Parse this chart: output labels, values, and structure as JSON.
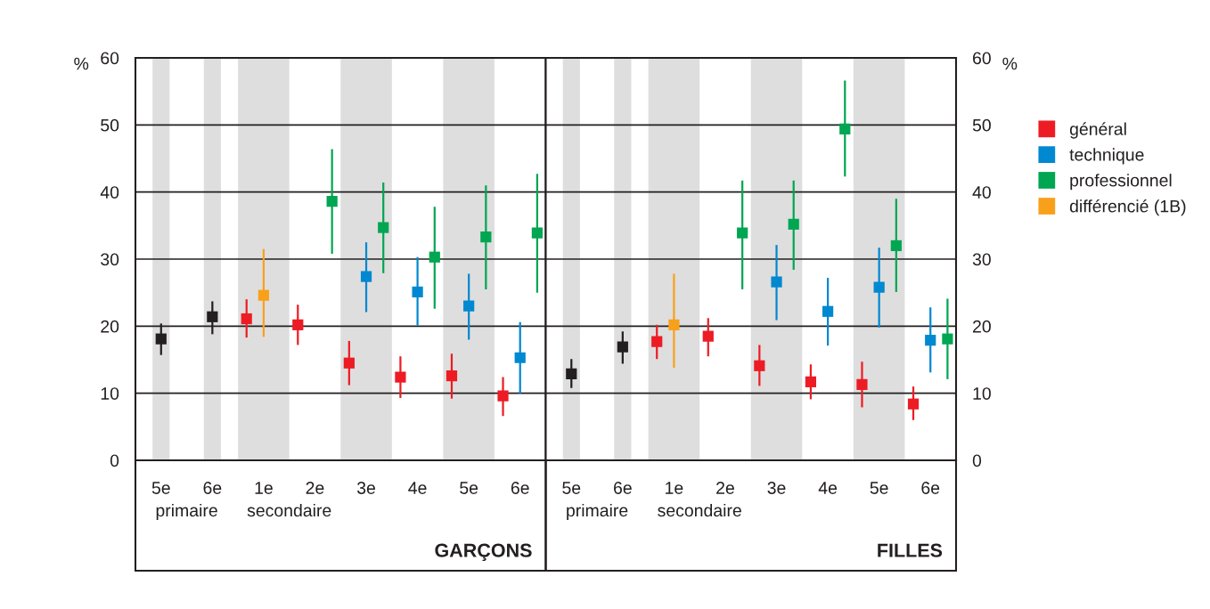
{
  "chart_data": [
    {
      "type": "scatter",
      "title": "GARÇONS",
      "ylabel": "%",
      "categories": [
        "5e",
        "6e",
        "1e",
        "2e",
        "3e",
        "4e",
        "5e",
        "6e"
      ],
      "annotations": [
        "primaire",
        "secondaire"
      ],
      "ylim": [
        0,
        60
      ],
      "yticks": [
        0,
        10,
        20,
        30,
        40,
        50,
        60
      ],
      "grid": "y",
      "marker": "square",
      "bands": [
        {
          "axis": "x",
          "from": "5e",
          "to": "5e",
          "color": "#dedede"
        },
        {
          "axis": "x",
          "from": "6e",
          "to": "6e",
          "color": "#dedede"
        }
      ],
      "series": [
        {
          "color": "#231f20",
          "values": [
            18.1,
            21.4,
            null,
            null,
            null,
            null,
            null,
            null
          ],
          "errors": [
            [
              15.7,
              20.4
            ],
            [
              18.8,
              23.7
            ],
            null,
            null,
            null,
            null,
            null,
            null
          ]
        },
        {
          "color": "#ed1c24",
          "values": [
            null,
            null,
            21.1,
            20.2,
            14.5,
            12.4,
            12.6,
            9.6
          ],
          "errors": [
            null,
            null,
            [
              18.3,
              24.0
            ],
            [
              17.2,
              23.2
            ],
            [
              11.2,
              17.8
            ],
            [
              9.3,
              15.5
            ],
            [
              9.2,
              15.9
            ],
            [
              6.6,
              12.4
            ]
          ]
        },
        {
          "color": "#0088d1",
          "values": [
            null,
            null,
            null,
            null,
            27.4,
            25.1,
            23.0,
            15.3
          ],
          "errors": [
            null,
            null,
            null,
            null,
            [
              22.1,
              32.5
            ],
            [
              20.1,
              30.3
            ],
            [
              18.0,
              27.8
            ],
            [
              10.0,
              20.6
            ]
          ]
        },
        {
          "color": "#00a651",
          "values": [
            null,
            null,
            null,
            38.6,
            34.7,
            30.3,
            33.3,
            33.9
          ],
          "errors": [
            null,
            null,
            null,
            [
              30.8,
              46.4
            ],
            [
              27.9,
              41.4
            ],
            [
              22.6,
              37.8
            ],
            [
              25.5,
              41.0
            ],
            [
              25.0,
              42.7
            ]
          ]
        },
        {
          "color": "#f9a01b",
          "values": [
            null,
            null,
            24.6,
            null,
            null,
            null,
            null,
            null
          ],
          "errors": [
            null,
            null,
            [
              18.4,
              31.5
            ],
            null,
            null,
            null,
            null,
            null
          ]
        }
      ]
    },
    {
      "type": "scatter",
      "title": "FILLES",
      "ylabel": "%",
      "categories": [
        "5e",
        "6e",
        "1e",
        "2e",
        "3e",
        "4e",
        "5e",
        "6e"
      ],
      "annotations": [
        "primaire",
        "secondaire"
      ],
      "ylim": [
        0,
        60
      ],
      "yticks": [
        0,
        10,
        20,
        30,
        40,
        50,
        60
      ],
      "grid": "y",
      "marker": "square",
      "legend": "right",
      "bands": [
        {
          "axis": "x",
          "from": "5e",
          "to": "5e",
          "color": "#dedede"
        },
        {
          "axis": "x",
          "from": "6e",
          "to": "6e",
          "color": "#dedede"
        }
      ],
      "series": [
        {
          "color": "#231f20",
          "values": [
            12.9,
            16.9,
            null,
            null,
            null,
            null,
            null,
            null
          ],
          "errors": [
            [
              10.8,
              15.1
            ],
            [
              14.4,
              19.2
            ],
            null,
            null,
            null,
            null,
            null,
            null
          ]
        },
        {
          "name": "général",
          "color": "#ed1c24",
          "values": [
            null,
            null,
            17.7,
            18.5,
            14.1,
            11.7,
            11.3,
            8.4
          ],
          "errors": [
            null,
            null,
            [
              15.1,
              20.2
            ],
            [
              15.5,
              21.2
            ],
            [
              11.1,
              17.2
            ],
            [
              9.1,
              14.3
            ],
            [
              7.9,
              14.7
            ],
            [
              6.0,
              11.0
            ]
          ]
        },
        {
          "name": "technique",
          "color": "#0088d1",
          "values": [
            null,
            null,
            null,
            null,
            26.6,
            22.2,
            25.8,
            17.9
          ],
          "errors": [
            null,
            null,
            null,
            null,
            [
              20.9,
              32.1
            ],
            [
              17.1,
              27.2
            ],
            [
              19.8,
              31.7
            ],
            [
              13.1,
              22.8
            ]
          ]
        },
        {
          "name": "professionnel",
          "color": "#00a651",
          "values": [
            null,
            null,
            null,
            33.9,
            35.2,
            49.4,
            32.0,
            18.1
          ],
          "errors": [
            null,
            null,
            null,
            [
              25.5,
              41.7
            ],
            [
              28.4,
              41.7
            ],
            [
              42.3,
              56.6
            ],
            [
              25.1,
              39.0
            ],
            [
              12.1,
              24.1
            ]
          ]
        },
        {
          "name": "différencié (1B)",
          "color": "#f9a01b",
          "values": [
            null,
            null,
            20.2,
            null,
            null,
            null,
            null,
            null
          ],
          "errors": [
            null,
            null,
            [
              13.8,
              27.8
            ],
            null,
            null,
            null,
            null,
            null
          ]
        }
      ]
    }
  ]
}
